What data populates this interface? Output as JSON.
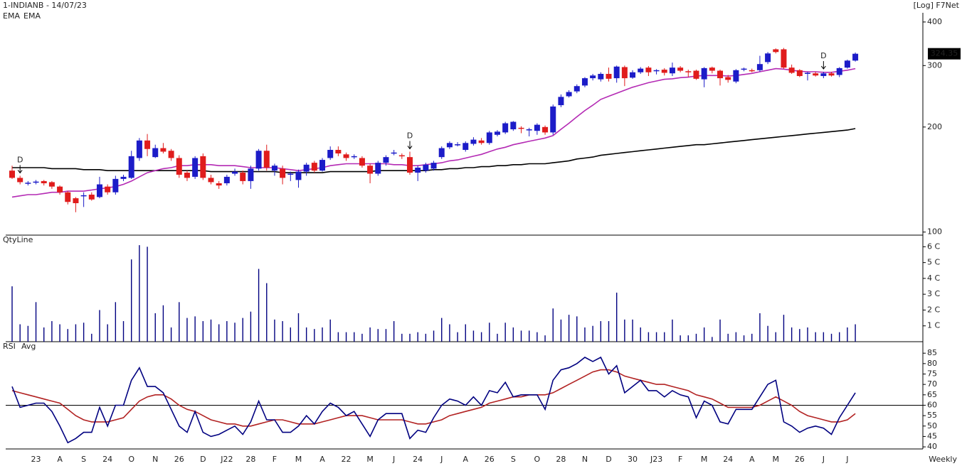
{
  "chart_data": [
    {
      "type": "candlestick",
      "title": "1-INDIANB - 14/07/23",
      "scale_label": "[Log] F7Net",
      "log_scale": true,
      "up_color": "#1c1cc8",
      "down_color": "#e01c1c",
      "ylim": [
        98,
        425
      ],
      "yticks": [
        100,
        200,
        300,
        400
      ],
      "open": [
        150,
        143,
        138,
        139,
        140,
        139,
        135,
        130,
        125,
        127,
        128,
        126,
        135,
        130,
        142,
        143,
        163,
        183,
        164,
        174,
        171,
        163,
        148,
        144,
        165,
        143,
        138,
        138,
        147,
        148,
        140,
        152,
        171,
        150,
        152,
        146,
        141,
        149,
        158,
        150,
        163,
        172,
        167,
        164,
        163,
        155,
        147,
        158,
        168,
        166,
        164,
        148,
        150,
        152,
        164,
        175,
        178,
        172,
        179,
        183,
        180,
        190,
        193,
        197,
        199,
        196,
        195,
        200,
        193,
        231,
        245,
        253,
        263,
        276,
        274,
        284,
        276,
        297,
        277,
        287,
        296,
        290,
        292,
        285,
        296,
        289,
        290,
        274,
        296,
        290,
        278,
        270,
        293,
        291,
        291,
        307,
        334,
        334,
        296,
        291,
        285,
        285,
        280,
        285,
        282,
        296,
        310
      ],
      "high": [
        155,
        145,
        140,
        141,
        141,
        140,
        136,
        131,
        126,
        130,
        130,
        144,
        137,
        145,
        146,
        171,
        186,
        191,
        178,
        180,
        173,
        166,
        150,
        165,
        168,
        146,
        140,
        146,
        152,
        150,
        155,
        173,
        178,
        157,
        155,
        149,
        151,
        158,
        160,
        163,
        176,
        176,
        169,
        167,
        165,
        157,
        160,
        166,
        172,
        168,
        170,
        155,
        158,
        160,
        176,
        182,
        181,
        182,
        187,
        186,
        195,
        196,
        207,
        208,
        201,
        199,
        205,
        202,
        232,
        248,
        255,
        265,
        278,
        284,
        287,
        296,
        300,
        300,
        291,
        297,
        299,
        293,
        295,
        306,
        299,
        292,
        292,
        297,
        298,
        292,
        282,
        293,
        296,
        294,
        320,
        328,
        336,
        337,
        302,
        293,
        288,
        288,
        288,
        288,
        297,
        312,
        327
      ],
      "low": [
        142,
        137,
        136,
        137,
        136,
        133,
        128,
        120,
        114,
        118,
        123,
        125,
        128,
        128,
        140,
        142,
        160,
        165,
        163,
        168,
        160,
        143,
        140,
        142,
        141,
        137,
        133,
        136,
        145,
        137,
        133,
        150,
        150,
        145,
        137,
        140,
        134,
        145,
        148,
        149,
        161,
        165,
        160,
        162,
        153,
        138,
        145,
        155,
        166,
        162,
        146,
        140,
        148,
        150,
        162,
        173,
        176,
        170,
        177,
        178,
        178,
        188,
        191,
        195,
        192,
        188,
        190,
        190,
        190,
        228,
        243,
        250,
        260,
        272,
        270,
        270,
        268,
        262,
        275,
        284,
        280,
        283,
        281,
        280,
        287,
        278,
        273,
        260,
        285,
        263,
        268,
        267,
        289,
        287,
        288,
        303,
        325,
        294,
        284,
        278,
        272,
        279,
        276,
        279,
        278,
        294,
        308
      ],
      "close": [
        143,
        139,
        138.5,
        139.5,
        138,
        135,
        130,
        122,
        121,
        127.5,
        124,
        137,
        130,
        142,
        144,
        165,
        183,
        173,
        174,
        170,
        163,
        146,
        143,
        163,
        143,
        139,
        136,
        144,
        149,
        140,
        152,
        171,
        153,
        155,
        143,
        147,
        149,
        156,
        150,
        161,
        172,
        168,
        163,
        165,
        155,
        147,
        158,
        164,
        169,
        165,
        148,
        153,
        156,
        158,
        174,
        180,
        178.5,
        180,
        184,
        180,
        193,
        194,
        205,
        207,
        198,
        197,
        203,
        193,
        229,
        244,
        252,
        262,
        276,
        281,
        284,
        275,
        298,
        276,
        287,
        294,
        287,
        291,
        286,
        296,
        290,
        287,
        275,
        295,
        290,
        276,
        273,
        291,
        294,
        290,
        303,
        325,
        328,
        296,
        286,
        280,
        286,
        281,
        285,
        281,
        295,
        310,
        324.35
      ],
      "series": [
        {
          "name": "EMA",
          "color": "#000000",
          "values": [
            153,
            153,
            153,
            153,
            153,
            152,
            152,
            152,
            152,
            151,
            151,
            151,
            150,
            150,
            150,
            150,
            150,
            150,
            150,
            150,
            150,
            150,
            150,
            150,
            150,
            149,
            149,
            149,
            149,
            149,
            149,
            149,
            149,
            149,
            148,
            148,
            148,
            148,
            148,
            148,
            149,
            149,
            149,
            149,
            149,
            149,
            150,
            150,
            150,
            150,
            150,
            150,
            150,
            151,
            151,
            152,
            152,
            153,
            153,
            154,
            154,
            155,
            155,
            156,
            156,
            157,
            157,
            157,
            158,
            159,
            160,
            162,
            163,
            164,
            166,
            167,
            168,
            169,
            170,
            171,
            172,
            173,
            174,
            175,
            176,
            177,
            178,
            178,
            179,
            180,
            181,
            182,
            183,
            184,
            185,
            186,
            187,
            188,
            189,
            190,
            191,
            192,
            193,
            194,
            195,
            196,
            198
          ]
        },
        {
          "name": "EMA",
          "color": "#b42ab4",
          "values": [
            126,
            127,
            128,
            128,
            129,
            130,
            130,
            131,
            131,
            131,
            132,
            133,
            134,
            135,
            137,
            140,
            144,
            148,
            150,
            152,
            153,
            155,
            155,
            156,
            156,
            156,
            155,
            155,
            155,
            154,
            153,
            153,
            153,
            153,
            152,
            151,
            150,
            151,
            152,
            153,
            155,
            156,
            157,
            157,
            157,
            157,
            157,
            157,
            156,
            156,
            155,
            155,
            156,
            157,
            158,
            160,
            161,
            163,
            165,
            167,
            170,
            173,
            175,
            178,
            180,
            182,
            184,
            186,
            189,
            197,
            205,
            214,
            223,
            231,
            240,
            245,
            250,
            255,
            260,
            264,
            268,
            271,
            274,
            275,
            277,
            278,
            280,
            281,
            281,
            281,
            280,
            281,
            283,
            285,
            288,
            291,
            294,
            293,
            291,
            289,
            288,
            288,
            287,
            287,
            289,
            291,
            294
          ]
        }
      ],
      "markers": [
        {
          "label": "D",
          "at_index": 1
        },
        {
          "label": "D",
          "at_index": 50
        },
        {
          "label": "D",
          "at_index": 102
        }
      ]
    },
    {
      "type": "bar",
      "ylim": [
        0,
        6.6
      ],
      "yticks": [
        {
          "value": 1,
          "label": "1 C"
        },
        {
          "value": 2,
          "label": "2 C"
        },
        {
          "value": 3,
          "label": "3 C"
        },
        {
          "value": 4,
          "label": "4 C"
        },
        {
          "value": 5,
          "label": "5 C"
        },
        {
          "value": 6,
          "label": "6 C"
        }
      ],
      "series": [
        {
          "name": "QtyLine",
          "color": "#000080",
          "values": [
            3.5,
            1.1,
            1.0,
            2.5,
            0.9,
            1.3,
            1.1,
            0.8,
            1.1,
            1.2,
            0.5,
            2.0,
            1.1,
            2.5,
            1.3,
            5.2,
            6.1,
            6.0,
            1.8,
            2.3,
            0.9,
            2.5,
            1.5,
            1.6,
            1.3,
            1.4,
            1.1,
            1.3,
            1.2,
            1.5,
            1.9,
            4.6,
            3.7,
            1.4,
            1.3,
            0.9,
            1.8,
            0.9,
            0.8,
            0.9,
            1.4,
            0.6,
            0.6,
            0.6,
            0.5,
            0.9,
            0.8,
            0.8,
            1.3,
            0.5,
            0.5,
            0.6,
            0.5,
            0.7,
            1.5,
            1.1,
            0.6,
            1.1,
            0.7,
            0.6,
            1.2,
            0.5,
            1.2,
            0.9,
            0.7,
            0.7,
            0.6,
            0.4,
            2.1,
            1.4,
            1.7,
            1.6,
            0.9,
            1.0,
            1.3,
            1.3,
            3.1,
            1.4,
            1.4,
            0.9,
            0.6,
            0.6,
            0.6,
            1.4,
            0.4,
            0.4,
            0.5,
            0.9,
            0.3,
            1.4,
            0.5,
            0.6,
            0.4,
            0.5,
            1.8,
            1.0,
            0.6,
            1.7,
            0.9,
            0.8,
            0.9,
            0.6,
            0.6,
            0.5,
            0.6,
            0.9,
            1.1
          ]
        }
      ]
    },
    {
      "type": "line",
      "ylim": [
        39,
        89.5
      ],
      "yticks": [
        40,
        45,
        50,
        55,
        60,
        65,
        70,
        75,
        80,
        85
      ],
      "reference_line": 60,
      "x_label": "Weekly",
      "categories": [
        null,
        null,
        null,
        "23",
        null,
        null,
        "A",
        null,
        null,
        "S",
        null,
        null,
        "24",
        null,
        null,
        "O",
        null,
        null,
        "N",
        null,
        null,
        "26",
        null,
        null,
        "D",
        null,
        null,
        "J22",
        null,
        null,
        "28",
        null,
        null,
        "F",
        null,
        null,
        "M",
        null,
        null,
        "A",
        null,
        null,
        "22",
        null,
        null,
        "M",
        null,
        null,
        "J",
        null,
        null,
        "24",
        null,
        null,
        "J",
        null,
        null,
        "A",
        null,
        null,
        "26",
        null,
        null,
        "S",
        null,
        null,
        "O",
        null,
        null,
        "28",
        null,
        null,
        "N",
        null,
        null,
        "D",
        null,
        null,
        "30",
        null,
        null,
        "J23",
        null,
        null,
        "F",
        null,
        null,
        "M",
        null,
        null,
        "24",
        null,
        null,
        "A",
        null,
        null,
        "M",
        null,
        null,
        "26",
        null,
        null,
        "J",
        null,
        null,
        "J",
        null
      ],
      "series": [
        {
          "name": "RSI",
          "color": "#000080",
          "values": [
            69,
            59,
            60,
            61,
            61,
            57,
            50,
            42,
            44,
            47,
            47,
            59,
            50,
            60,
            60,
            72,
            78,
            69,
            69,
            66,
            58,
            50,
            47,
            57,
            47,
            45,
            46,
            48,
            50,
            46,
            52,
            62,
            53,
            53,
            47,
            47,
            50,
            55,
            51,
            57,
            61,
            59,
            55,
            57,
            51,
            45,
            53,
            56,
            56,
            56,
            44,
            48,
            47,
            54,
            60,
            63,
            62,
            60,
            64,
            60,
            67,
            66,
            71,
            64,
            65,
            65,
            65,
            58,
            72,
            77,
            78,
            80,
            83,
            81,
            83,
            75,
            79,
            66,
            69,
            72,
            67,
            67,
            64,
            67,
            65,
            64,
            54,
            62,
            60,
            52,
            51,
            58,
            58,
            58,
            64,
            70,
            72,
            52,
            50,
            47,
            49,
            50,
            49,
            46,
            54,
            60,
            66
          ]
        },
        {
          "name": "Avg",
          "color": "#b22222",
          "values": [
            67,
            66,
            65,
            64,
            63,
            62,
            61,
            58,
            55,
            53,
            52,
            52,
            52,
            53,
            54,
            58,
            62,
            64,
            65,
            65,
            63,
            60,
            58,
            57,
            55,
            53,
            52,
            51,
            51,
            50,
            50,
            51,
            52,
            53,
            53,
            52,
            51,
            51,
            51,
            52,
            53,
            54,
            55,
            55,
            55,
            54,
            53,
            53,
            53,
            53,
            52,
            51,
            51,
            52,
            53,
            55,
            56,
            57,
            58,
            59,
            61,
            62,
            63,
            64,
            64,
            65,
            65,
            65,
            66,
            68,
            70,
            72,
            74,
            76,
            77,
            77,
            76,
            74,
            73,
            72,
            71,
            70,
            70,
            69,
            68,
            67,
            65,
            64,
            63,
            61,
            59,
            59,
            59,
            59,
            60,
            62,
            64,
            62,
            60,
            57,
            55,
            54,
            53,
            52,
            52,
            53,
            56
          ]
        }
      ]
    }
  ]
}
